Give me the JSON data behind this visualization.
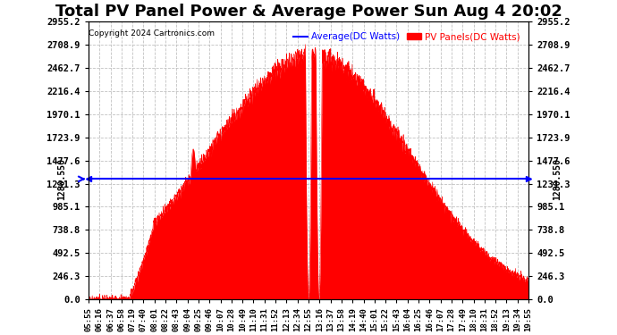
{
  "title": "Total PV Panel Power & Average Power Sun Aug 4 20:02",
  "copyright": "Copyright 2024 Cartronics.com",
  "legend_avg": "Average(DC Watts)",
  "legend_pv": "PV Panels(DC Watts)",
  "avg_value": 1280.55,
  "avg_label": "1280.550",
  "yticks": [
    0.0,
    246.3,
    492.5,
    738.8,
    985.1,
    1231.3,
    1477.6,
    1723.9,
    1970.1,
    2216.4,
    2462.7,
    2708.9,
    2955.2
  ],
  "ymax": 2955.2,
  "ymin": 0.0,
  "background_color": "#ffffff",
  "fill_color": "#ff0000",
  "avg_line_color": "#0000ff",
  "title_fontsize": 13,
  "tick_fontsize": 7.5,
  "grid_color": "#bbbbbb",
  "xtick_labels": [
    "05:55",
    "06:16",
    "06:37",
    "06:58",
    "07:19",
    "07:40",
    "08:01",
    "08:22",
    "08:43",
    "09:04",
    "09:25",
    "09:46",
    "10:07",
    "10:28",
    "10:49",
    "11:10",
    "11:31",
    "11:52",
    "12:13",
    "12:34",
    "12:55",
    "13:16",
    "13:37",
    "13:58",
    "14:19",
    "14:40",
    "15:01",
    "15:22",
    "15:43",
    "16:04",
    "16:25",
    "16:46",
    "17:07",
    "17:28",
    "17:49",
    "18:10",
    "18:31",
    "18:52",
    "19:13",
    "19:34",
    "19:55"
  ]
}
